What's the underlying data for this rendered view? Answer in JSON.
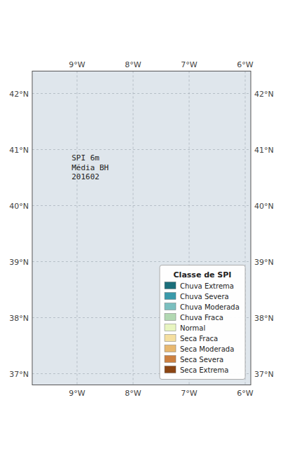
{
  "chart_data": {
    "type": "map",
    "title": "SPI 6m\nMédia BH\n201602",
    "legend_title": "Classe de SPI",
    "series": [
      {
        "name": "Chuva Extrema",
        "color": "#1a6e7a"
      },
      {
        "name": "Chuva Severa",
        "color": "#3a9aaa"
      },
      {
        "name": "Chuva Moderada",
        "color": "#7bbfbf"
      },
      {
        "name": "Chuva Fraca",
        "color": "#b2d8b2"
      },
      {
        "name": "Normal",
        "color": "#e8f5c0"
      },
      {
        "name": "Seca Fraca",
        "color": "#f5dfa0"
      },
      {
        "name": "Seca Moderada",
        "color": "#e8b870"
      },
      {
        "name": "Seca Severa",
        "color": "#cc8040"
      },
      {
        "name": "Seca Extrema",
        "color": "#8b4513"
      }
    ],
    "xlim": [
      -9.8,
      -5.9
    ],
    "ylim": [
      36.8,
      42.4
    ],
    "xticks": [
      {
        "value": -9,
        "label": "9°W"
      },
      {
        "value": -8,
        "label": "8°W"
      },
      {
        "value": -7,
        "label": "7°W"
      },
      {
        "value": -6,
        "label": "6°W"
      }
    ],
    "yticks": [
      {
        "value": 37,
        "label": "37°N"
      },
      {
        "value": 38,
        "label": "38°N"
      },
      {
        "value": 39,
        "label": "39°N"
      },
      {
        "value": 40,
        "label": "40°N"
      },
      {
        "value": 41,
        "label": "41°N"
      },
      {
        "value": 42,
        "label": "42°N"
      }
    ],
    "grid": true,
    "legend": "lower right"
  }
}
